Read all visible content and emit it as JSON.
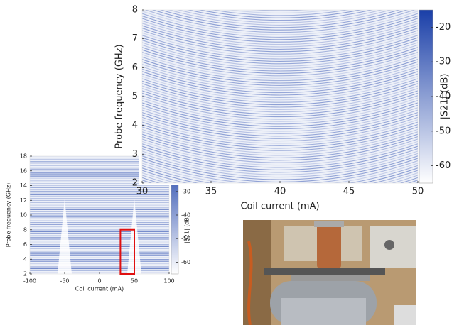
{
  "chart_data": [
    {
      "type": "heatmap",
      "x_label": "Coil current (mA)",
      "y_label": "Probe frequency (GHz)",
      "colorbar_label": "|S21| (dB)",
      "xlim": [
        -100,
        100
      ],
      "ylim": [
        2,
        18
      ],
      "xticks": [
        -100,
        -50,
        0,
        50,
        100
      ],
      "yticks": [
        2,
        4,
        6,
        8,
        10,
        12,
        14,
        16,
        18
      ],
      "clim": [
        -65,
        -15
      ],
      "cticks": [
        -30,
        -40,
        -50,
        -60
      ],
      "colormap": [
        "#ffffff",
        "#1a3fa8"
      ],
      "highlight": {
        "xlim": [
          30,
          50
        ],
        "ylim": [
          2,
          8
        ],
        "color": "#e01010"
      }
    },
    {
      "type": "heatmap",
      "x_label": "Coil current (mA)",
      "y_label": "Probe frequency (GHz)",
      "colorbar_label": "|S21| (dB)",
      "xlim": [
        30,
        50
      ],
      "ylim": [
        2,
        8
      ],
      "xticks": [
        30,
        35,
        40,
        45,
        50
      ],
      "yticks": [
        2,
        3,
        4,
        5,
        6,
        7,
        8
      ],
      "clim": [
        -65,
        -15
      ],
      "cticks": [
        -20,
        -30,
        -40,
        -50,
        -60
      ],
      "colormap": [
        "#ffffff",
        "#1a3fa8"
      ]
    }
  ]
}
